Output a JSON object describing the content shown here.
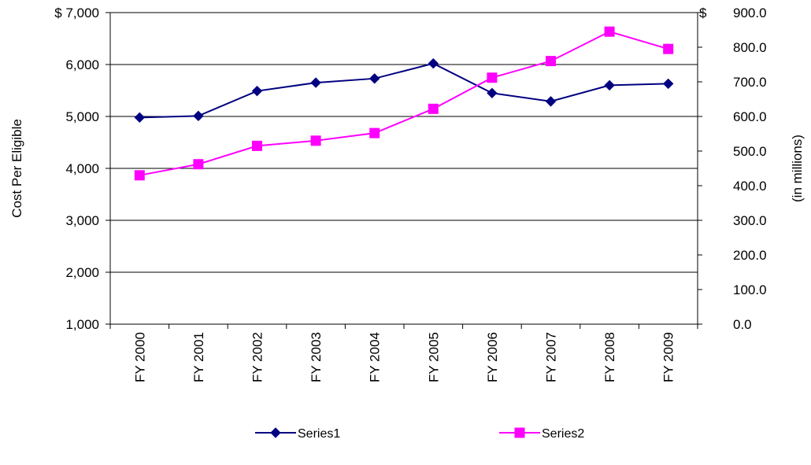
{
  "chart_data": {
    "type": "line",
    "categories": [
      "FY 2000",
      "FY 2001",
      "FY 2002",
      "FY 2003",
      "FY 2004",
      "FY 2005",
      "FY 2006",
      "FY 2007",
      "FY 2008",
      "FY 2009"
    ],
    "series": [
      {
        "name": "Series1",
        "axis": "left",
        "color": "#000080",
        "marker": "diamond",
        "values": [
          4980,
          5010,
          5490,
          5650,
          5730,
          6020,
          5450,
          5290,
          5600,
          5630
        ]
      },
      {
        "name": "Series2",
        "axis": "right",
        "color": "#ff00ff",
        "marker": "square",
        "values": [
          430,
          462,
          515,
          530,
          552,
          622,
          712,
          760,
          845,
          795
        ]
      }
    ],
    "left_axis": {
      "label": "Cost Per Eligible",
      "ylim": [
        1000,
        7000
      ],
      "ticks": [
        "1,000",
        "2,000",
        "3,000",
        "4,000",
        "5,000",
        "6,000",
        "7,000"
      ],
      "top_tick_text": "$ 7,000"
    },
    "right_axis": {
      "label": "(in millions)",
      "ylim": [
        0,
        900
      ],
      "ticks": [
        "0.0",
        "100.0",
        "200.0",
        "300.0",
        "400.0",
        "500.0",
        "600.0",
        "700.0",
        "800.0",
        "900.0"
      ],
      "currency_symbol": "$"
    },
    "grid": true,
    "legend": "bottom"
  }
}
